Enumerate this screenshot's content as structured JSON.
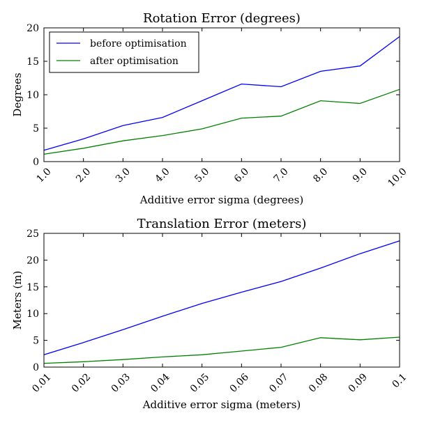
{
  "colors": {
    "before": "#0000ff",
    "after": "#008000"
  },
  "chart_data": [
    {
      "type": "line",
      "title": "Rotation Error (degrees)",
      "xlabel": "Additive error sigma (degrees)",
      "ylabel": "Degrees",
      "x": [
        1,
        2,
        3,
        4,
        5,
        6,
        7,
        8,
        9,
        10
      ],
      "x_tick_labels": [
        "1.0",
        "2.0",
        "3.0",
        "4.0",
        "5.0",
        "6.0",
        "7.0",
        "8.0",
        "9.0",
        "10.0"
      ],
      "xlim": [
        1,
        10
      ],
      "ylim": [
        0,
        20
      ],
      "y_ticks": [
        0,
        5,
        10,
        15,
        20
      ],
      "grid": false,
      "legend": "top-left",
      "series": [
        {
          "name": "before optimisation",
          "color": "#0000ff",
          "values": [
            1.7,
            3.4,
            5.4,
            6.6,
            9.1,
            11.6,
            11.2,
            13.5,
            14.3,
            18.7
          ]
        },
        {
          "name": "after optimisation",
          "color": "#008000",
          "values": [
            1.1,
            2.0,
            3.1,
            3.9,
            4.9,
            6.5,
            6.8,
            9.1,
            8.7,
            10.8
          ]
        }
      ]
    },
    {
      "type": "line",
      "title": "Translation Error (meters)",
      "xlabel": "Additive error sigma (meters)",
      "ylabel": "Meters (m)",
      "x": [
        0.01,
        0.02,
        0.03,
        0.04,
        0.05,
        0.06,
        0.07,
        0.08,
        0.09,
        0.1
      ],
      "x_tick_labels": [
        "0.01",
        "0.02",
        "0.03",
        "0.04",
        "0.05",
        "0.06",
        "0.07",
        "0.08",
        "0.09",
        "0.1"
      ],
      "xlim": [
        0.01,
        0.1
      ],
      "ylim": [
        0,
        25
      ],
      "y_ticks": [
        0,
        5,
        10,
        15,
        20,
        25
      ],
      "grid": false,
      "legend": "none",
      "series": [
        {
          "color": "#0000ff",
          "values": [
            2.3,
            4.6,
            7.0,
            9.5,
            11.9,
            14.0,
            16.0,
            18.5,
            21.2,
            23.6
          ]
        },
        {
          "color": "#008000",
          "values": [
            0.7,
            1.0,
            1.4,
            1.9,
            2.3,
            3.0,
            3.7,
            5.5,
            5.1,
            5.6
          ]
        }
      ]
    }
  ]
}
